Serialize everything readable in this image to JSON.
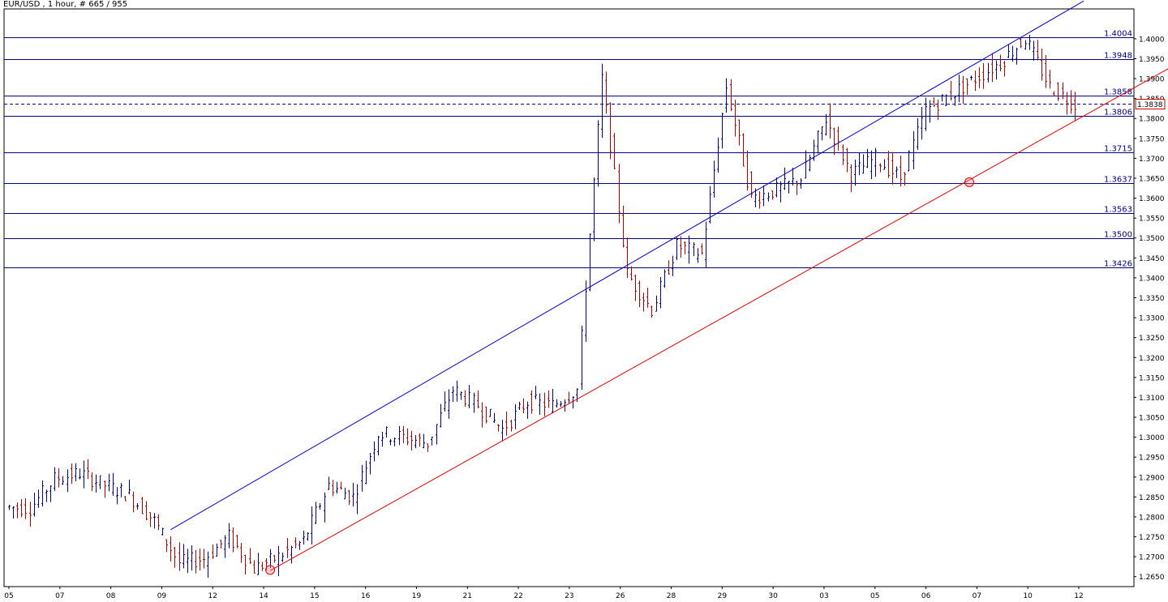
{
  "chart_title": "EUR/USD , 1 hour, # 665 / 955",
  "chart_data": {
    "type": "line",
    "title": "EUR/USD , 1 hour, # 665 / 955",
    "symbol": "EUR/USD",
    "timeframe": "1 hour",
    "xlabel": "",
    "ylabel": "",
    "ylim": [
      1.2625,
      1.4075
    ],
    "grid": false,
    "price_ticks": [
      "1.4000",
      "1.3950",
      "1.3900",
      "1.3850",
      "1.3800",
      "1.3750",
      "1.3700",
      "1.3650",
      "1.3600",
      "1.3550",
      "1.3500",
      "1.3450",
      "1.3400",
      "1.3350",
      "1.3300",
      "1.3250",
      "1.3200",
      "1.3150",
      "1.3100",
      "1.3050",
      "1.3000",
      "1.2950",
      "1.2900",
      "1.2850",
      "1.2800",
      "1.2750",
      "1.2700",
      "1.2650"
    ],
    "date_labels": [
      "05",
      "07",
      "08",
      "09",
      "12",
      "14",
      "15",
      "16",
      "19",
      "21",
      "22",
      "23",
      "26",
      "28",
      "29",
      "30",
      "03",
      "05",
      "06",
      "07",
      "10",
      "12"
    ],
    "current_price": "1.3838",
    "horizontal_levels": [
      {
        "label": "1.4004",
        "value": 1.4004
      },
      {
        "label": "1.3948",
        "value": 1.3948
      },
      {
        "label": "1.3858",
        "value": 1.3858
      },
      {
        "label": "1.3806",
        "value": 1.3806
      },
      {
        "label": "1.3715",
        "value": 1.3715
      },
      {
        "label": "1.3637",
        "value": 1.3637
      },
      {
        "label": "1.3563",
        "value": 1.3563
      },
      {
        "label": "1.3500",
        "value": 1.35
      },
      {
        "label": "1.3426",
        "value": 1.3426
      }
    ],
    "upper_channel_line": {
      "color": "#0000cc",
      "from_bar": 6.5,
      "from_price": 1.2768,
      "to_bar": 43.2,
      "to_price": 1.4095
    },
    "lower_channel_line": {
      "color": "#dd0000",
      "from_bar": 10.5,
      "from_price": 1.2665,
      "to_bar": 47.6,
      "to_price": 1.396
    },
    "pivot_markers": [
      {
        "bar": 10.5,
        "price": 1.2667
      },
      {
        "bar": 38.6,
        "price": 1.364
      }
    ],
    "closes": [
      1.2825,
      1.2822,
      1.2895,
      1.291,
      1.288,
      1.2855,
      1.279,
      1.2685,
      1.2695,
      1.275,
      1.267,
      1.27,
      1.274,
      1.288,
      1.285,
      1.301,
      1.3,
      1.2985,
      1.312,
      1.308,
      1.302,
      1.309,
      1.308,
      1.312,
      1.39,
      1.341,
      1.332,
      1.348,
      1.346,
      1.388,
      1.36,
      1.362,
      1.365,
      1.38,
      1.366,
      1.37,
      1.365,
      1.382,
      1.386,
      1.39,
      1.394,
      1.4,
      1.388,
      1.3835
    ],
    "colors": {
      "background": "#ffffff",
      "level_lines": "#000080",
      "current_price": "#cc0000",
      "candles": "#000000"
    }
  }
}
